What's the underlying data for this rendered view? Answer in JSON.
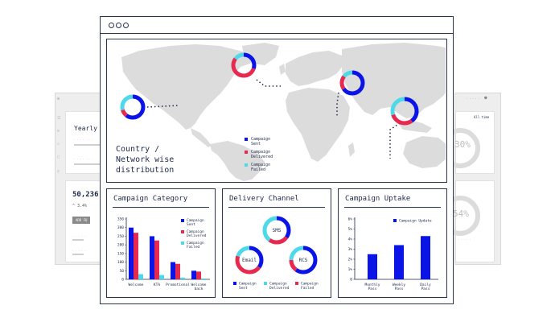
{
  "background_left": {
    "heading": "Yearly",
    "stat": "50,236",
    "stat_sub": "^ 3.4%",
    "button_label": "ADD FO"
  },
  "background_right": {
    "pct_top": "30%",
    "pct_bottom": "54%",
    "link": "All time"
  },
  "colors": {
    "sent": "#0a14e6",
    "delivered": "#e8294f",
    "failed": "#4dd9ea",
    "dark": "#1e2a4a",
    "map_land": "#dcdcdc"
  },
  "map_panel": {
    "caption_line1": "Country /",
    "caption_line2": "Network wise",
    "caption_line3": "distribution",
    "legend": [
      {
        "label_line1": "Campaign",
        "label_line2": "Sent",
        "color_key": "sent"
      },
      {
        "label_line1": "Campaign",
        "label_line2": "Delivered",
        "color_key": "delivered"
      },
      {
        "label_line1": "Campaign",
        "label_line2": "Failed",
        "color_key": "failed"
      }
    ],
    "donuts": [
      {
        "name": "donut-west",
        "sent": 0.6,
        "delivered": 0.1,
        "failed": 0.3
      },
      {
        "name": "donut-north-atlantic",
        "sent": 0.3,
        "delivered": 0.55,
        "failed": 0.15
      },
      {
        "name": "donut-asia",
        "sent": 0.65,
        "delivered": 0.2,
        "failed": 0.15
      },
      {
        "name": "donut-southeast",
        "sent": 0.4,
        "delivered": 0.3,
        "failed": 0.3
      }
    ]
  },
  "campaign_category": {
    "title": "Campaign Category",
    "y_ticks": [
      "350",
      "300",
      "250",
      "200",
      "150",
      "100",
      "50",
      "0"
    ],
    "categories": [
      {
        "line1": "Welcome",
        "line2": ""
      },
      {
        "line1": "KTA",
        "line2": ""
      },
      {
        "line1": "Promotional",
        "line2": ""
      },
      {
        "line1": "Welcome",
        "line2": "back"
      }
    ],
    "legend": [
      {
        "label_line1": "Campaign",
        "label_line2": "Sent",
        "color_key": "sent"
      },
      {
        "label_line1": "Campaign",
        "label_line2": "Delivered",
        "color_key": "delivered"
      },
      {
        "label_line1": "Campaign",
        "label_line2": "Failed",
        "color_key": "failed"
      }
    ]
  },
  "delivery_channel": {
    "title": "Delivery Channel",
    "donuts": [
      {
        "label": "SMS",
        "sent": 0.35,
        "delivered": 0.25,
        "failed": 0.4
      },
      {
        "label": "Email",
        "sent": 0.35,
        "delivered": 0.45,
        "failed": 0.2
      },
      {
        "label": "RCS",
        "sent": 0.6,
        "delivered": 0.15,
        "failed": 0.25
      }
    ],
    "legend": [
      {
        "label_line1": "Campaign",
        "label_line2": "Sent",
        "color_key": "sent"
      },
      {
        "label_line1": "Campaign",
        "label_line2": "Delivered",
        "color_key": "failed"
      },
      {
        "label_line1": "Campaign",
        "label_line2": "Failed",
        "color_key": "delivered"
      }
    ]
  },
  "campaign_uptake": {
    "title": "Campaign Uptake",
    "legend_label": "Campaign Update"
  },
  "chart_data": [
    {
      "type": "bar",
      "title": "Campaign Category",
      "categories": [
        "Welcome",
        "KTA",
        "Promotional",
        "Welcome back"
      ],
      "ylim": [
        0,
        350
      ],
      "y_ticks": [
        0,
        50,
        100,
        150,
        200,
        250,
        300,
        350
      ],
      "series": [
        {
          "name": "Campaign Sent",
          "color_key": "sent",
          "values": [
            300,
            250,
            100,
            50
          ]
        },
        {
          "name": "Campaign Delivered",
          "color_key": "delivered",
          "values": [
            270,
            225,
            90,
            45
          ]
        },
        {
          "name": "Campaign Failed",
          "color_key": "failed",
          "values": [
            30,
            25,
            10,
            5
          ]
        }
      ]
    },
    {
      "type": "bar",
      "title": "Campaign Uptake",
      "categories": [
        "Monthly Pass",
        "Weekly Pass",
        "Daily Pass"
      ],
      "category_lines": [
        [
          "Monthly",
          "Pass"
        ],
        [
          "Weekly",
          "Pass"
        ],
        [
          "Daily",
          "Pass"
        ]
      ],
      "ylim": [
        0,
        6
      ],
      "y_ticks": [
        "0",
        "1%",
        "2%",
        "3%",
        "4%",
        "5%",
        "6%"
      ],
      "series": [
        {
          "name": "Campaign Update",
          "color_key": "sent",
          "values": [
            2.5,
            3.4,
            4.3
          ]
        }
      ]
    }
  ]
}
